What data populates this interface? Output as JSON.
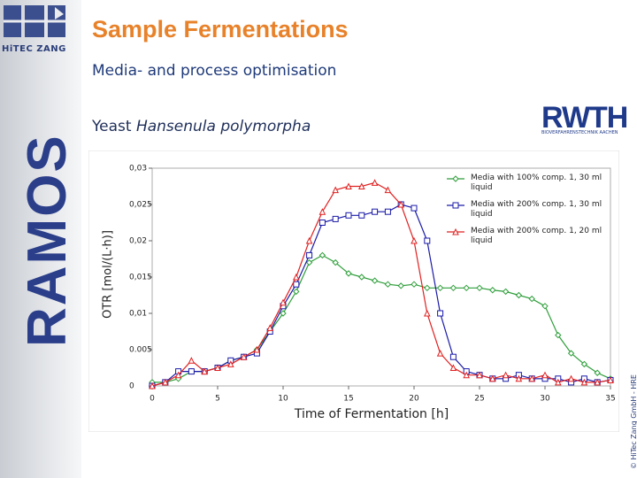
{
  "slide": {
    "logo": "HiTEC ZANG",
    "product": "RAMOS",
    "title": "Sample Fermentations",
    "subtitle": "Media- and process optimisation",
    "organism_prefix": "Yeast",
    "organism_species": "Hansenula polymorpha",
    "partner": "RWTH",
    "partner_sub": "BIOVERFAHRENSTECHNIK AACHEN",
    "copyright": "© HiTec Zang GmbH - HRE"
  },
  "chart_data": {
    "type": "line",
    "x_label": "Time of Fermentation [h]",
    "y_label": "OTR [mol/(L·h)]",
    "x": [
      0,
      1,
      2,
      3,
      4,
      5,
      6,
      7,
      8,
      9,
      10,
      11,
      12,
      13,
      14,
      15,
      16,
      17,
      18,
      19,
      20,
      21,
      22,
      23,
      24,
      25,
      26,
      27,
      28,
      29,
      30,
      31,
      32,
      33,
      34,
      35
    ],
    "series": [
      {
        "name": "Media with 100% comp. 1, 30 ml liquid",
        "color": "#2e9e3a",
        "marker": "diamond",
        "values": [
          0.0005,
          0.0005,
          0.001,
          0.002,
          0.002,
          0.0025,
          0.0035,
          0.004,
          0.005,
          0.0075,
          0.01,
          0.013,
          0.017,
          0.018,
          0.017,
          0.0155,
          0.015,
          0.0145,
          0.014,
          0.0138,
          0.014,
          0.0135,
          0.0135,
          0.0135,
          0.0135,
          0.0135,
          0.0132,
          0.013,
          0.0125,
          0.012,
          0.011,
          0.007,
          0.0045,
          0.003,
          0.0018,
          0.001
        ]
      },
      {
        "name": "Media with 200% comp. 1, 30 ml liquid",
        "color": "#1a1aa8",
        "marker": "square",
        "values": [
          0,
          0.0005,
          0.002,
          0.002,
          0.002,
          0.0025,
          0.0035,
          0.004,
          0.0045,
          0.0075,
          0.011,
          0.014,
          0.018,
          0.0225,
          0.023,
          0.0235,
          0.0235,
          0.024,
          0.024,
          0.025,
          0.0245,
          0.02,
          0.01,
          0.004,
          0.002,
          0.0015,
          0.001,
          0.001,
          0.0015,
          0.001,
          0.001,
          0.001,
          0.0005,
          0.001,
          0.0005,
          0.0008
        ]
      },
      {
        "name": "Media with 200% comp. 1, 20 ml liquid",
        "color": "#e02020",
        "marker": "triangle",
        "values": [
          0,
          0.0005,
          0.0015,
          0.0035,
          0.002,
          0.0025,
          0.003,
          0.004,
          0.005,
          0.008,
          0.0115,
          0.015,
          0.02,
          0.024,
          0.027,
          0.0275,
          0.0275,
          0.028,
          0.027,
          0.025,
          0.02,
          0.01,
          0.0045,
          0.0025,
          0.0015,
          0.0015,
          0.001,
          0.0015,
          0.001,
          0.001,
          0.0015,
          0.0005,
          0.001,
          0.0005,
          0.0005,
          0.0008
        ]
      }
    ],
    "xlim": [
      0,
      35
    ],
    "xticks": [
      0,
      5,
      10,
      15,
      20,
      25,
      30,
      35
    ],
    "ylim": [
      0,
      0.03
    ],
    "yticks": [
      0,
      {
        "value": 0.005,
        "label": "0.005"
      },
      {
        "value": 0.01,
        "label": "0,01"
      },
      {
        "value": 0.015,
        "label": "0,015"
      },
      {
        "value": 0.02,
        "label": "0,02"
      },
      {
        "value": 0.025,
        "label": "0,025"
      },
      {
        "value": 0.03,
        "label": "0,03"
      }
    ],
    "legend": "top-right",
    "grid": false
  }
}
